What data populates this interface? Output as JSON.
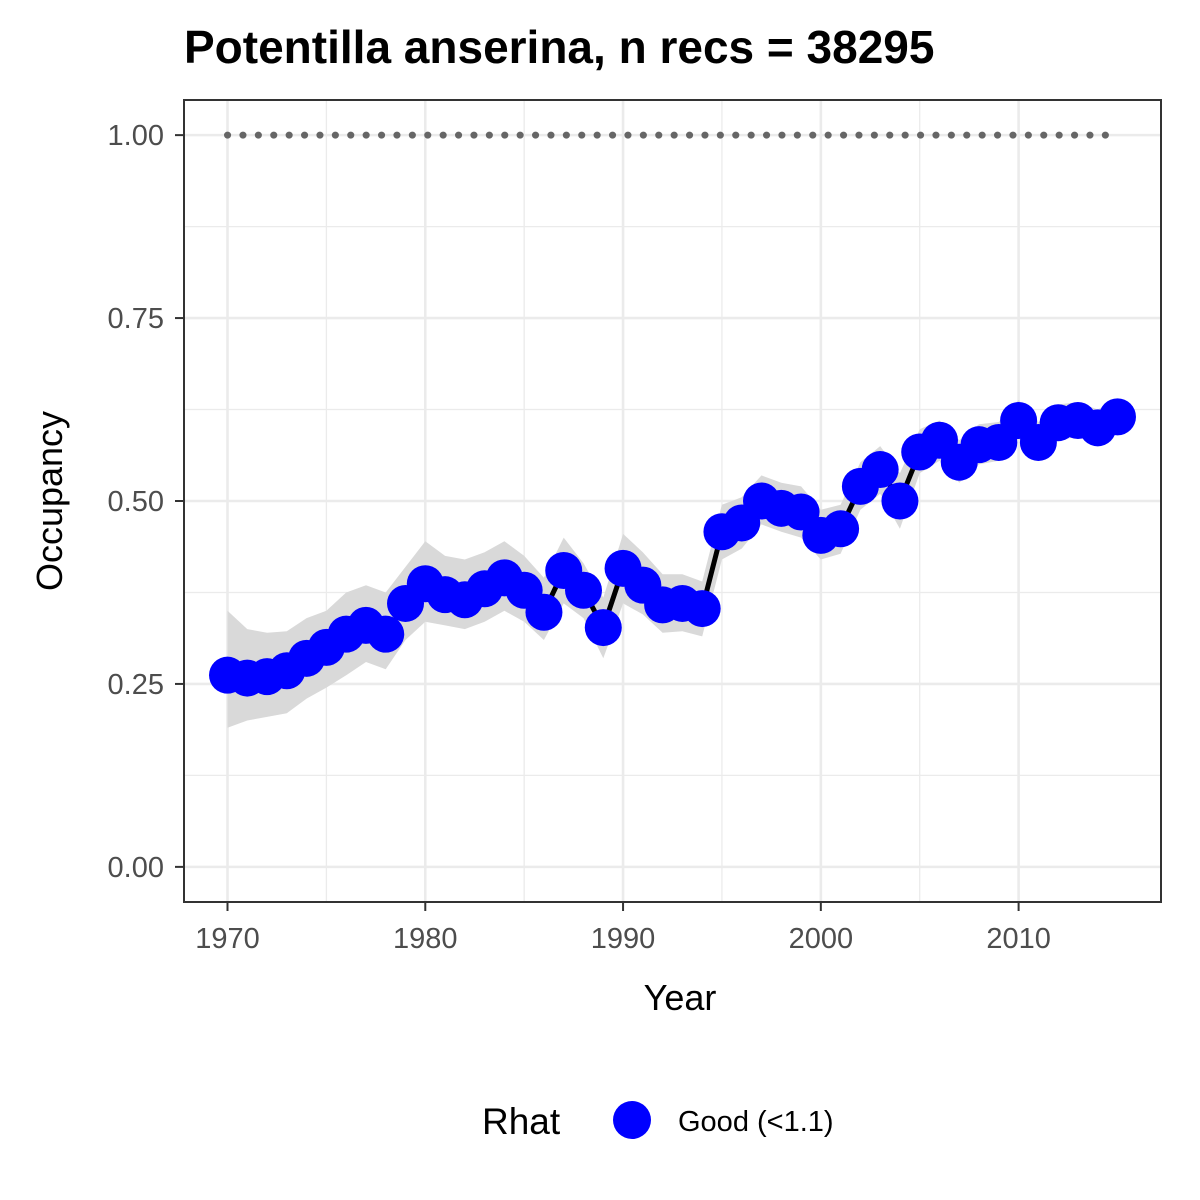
{
  "chart_data": {
    "type": "line",
    "title": "Potentilla anserina, n recs = 38295",
    "xlabel": "Year",
    "ylabel": "Occupancy",
    "xlim": [
      1967.8,
      2017.2
    ],
    "ylim": [
      -0.048,
      1.048
    ],
    "x_ticks": [
      1970,
      1980,
      1990,
      2000,
      2010
    ],
    "x_tick_labels": [
      "1970",
      "1980",
      "1990",
      "2000",
      "2010"
    ],
    "y_ticks": [
      0,
      0.25,
      0.5,
      0.75,
      1.0
    ],
    "y_tick_labels": [
      "0.00",
      "0.25",
      "0.50",
      "0.75",
      "1.00"
    ],
    "grid": true,
    "legend_position": "bottom",
    "legend": {
      "title": "Rhat",
      "entries": [
        {
          "label": "Good (<1.1)",
          "color": "#0000ff"
        }
      ]
    },
    "colors": {
      "points": "#0000ff",
      "line": "#000000",
      "ribbon": "#d9d9d9",
      "reference": "#666666"
    },
    "reference_line": {
      "y": 1.0,
      "style": "dotted"
    },
    "series": [
      {
        "x": [
          1970,
          1971,
          1972,
          1973,
          1974,
          1975,
          1976,
          1977,
          1978,
          1979,
          1980,
          1981,
          1982,
          1983,
          1984,
          1985,
          1986,
          1987,
          1988,
          1989,
          1990,
          1991,
          1992,
          1993,
          1994,
          1995,
          1996,
          1997,
          1998,
          1999,
          2000,
          2001,
          2002,
          2003,
          2004,
          2005,
          2006,
          2007,
          2008,
          2009,
          2010,
          2011,
          2012,
          2013,
          2014,
          2015
        ],
        "y": [
          0.262,
          0.258,
          0.26,
          0.268,
          0.285,
          0.3,
          0.318,
          0.33,
          0.318,
          0.36,
          0.387,
          0.372,
          0.365,
          0.38,
          0.395,
          0.378,
          0.348,
          0.405,
          0.378,
          0.327,
          0.408,
          0.385,
          0.358,
          0.36,
          0.353,
          0.458,
          0.47,
          0.5,
          0.49,
          0.485,
          0.453,
          0.462,
          0.52,
          0.543,
          0.5,
          0.567,
          0.583,
          0.553,
          0.577,
          0.58,
          0.61,
          0.58,
          0.607,
          0.61,
          0.6,
          0.615
        ],
        "lower": [
          0.19,
          0.2,
          0.205,
          0.21,
          0.23,
          0.245,
          0.262,
          0.28,
          0.27,
          0.31,
          0.335,
          0.33,
          0.325,
          0.335,
          0.35,
          0.335,
          0.31,
          0.36,
          0.34,
          0.285,
          0.36,
          0.345,
          0.32,
          0.322,
          0.315,
          0.42,
          0.435,
          0.468,
          0.458,
          0.45,
          0.42,
          0.428,
          0.488,
          0.51,
          0.462,
          0.538,
          0.555,
          0.525,
          0.55,
          0.555,
          0.585,
          0.555,
          0.583,
          0.588,
          0.578,
          0.593
        ],
        "upper": [
          0.35,
          0.325,
          0.32,
          0.322,
          0.34,
          0.35,
          0.375,
          0.385,
          0.375,
          0.41,
          0.445,
          0.425,
          0.42,
          0.43,
          0.445,
          0.425,
          0.395,
          0.45,
          0.415,
          0.368,
          0.455,
          0.43,
          0.4,
          0.4,
          0.39,
          0.495,
          0.505,
          0.535,
          0.525,
          0.52,
          0.488,
          0.495,
          0.553,
          0.575,
          0.538,
          0.598,
          0.61,
          0.583,
          0.605,
          0.608,
          0.638,
          0.608,
          0.632,
          0.635,
          0.625,
          0.64
        ]
      }
    ]
  }
}
